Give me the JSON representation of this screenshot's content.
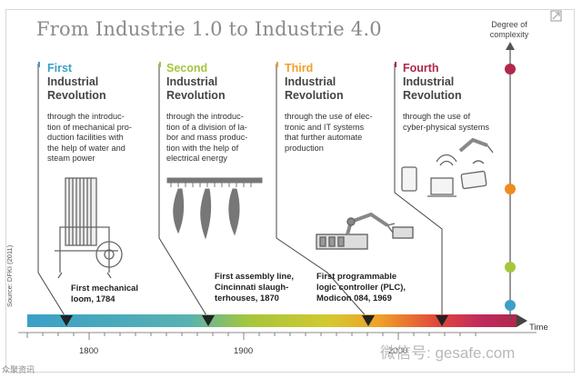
{
  "title": "From Industrie 1.0 to Industrie 4.0",
  "degree_label": "Degree of\ncomplexity",
  "time_label": "Time",
  "source_label": "Source: DFKI (2011)",
  "revolutions": [
    {
      "ordinal": "First",
      "name_line1": "Industrial",
      "name_line2": "Revolution",
      "color": "#3aa0c8",
      "description": "through the introduc-\ntion of mechanical pro-\nduction facilities with\nthe help of water and\nsteam power"
    },
    {
      "ordinal": "Second",
      "name_line1": "Industrial",
      "name_line2": "Revolution",
      "color": "#a4c63c",
      "description": "through the introduc-\ntion of a division of la-\nbor and mass produc-\ntion with the help of\nelectrical energy"
    },
    {
      "ordinal": "Third",
      "name_line1": "Industrial",
      "name_line2": "Revolution",
      "color": "#f0a028",
      "description": "through the use of elec-\ntronic and IT systems\nthat further automate\nproduction"
    },
    {
      "ordinal": "Fourth",
      "name_line1": "Industrial",
      "name_line2": "Revolution",
      "color": "#b0284a",
      "description": "through the use of\ncyber-physical systems"
    }
  ],
  "milestones": [
    {
      "text": "First mechanical\nloom, 1784"
    },
    {
      "text": "First assembly line,\nCincinnati slaugh-\nterhouses, 1870"
    },
    {
      "text": "First programmable\nlogic controller (PLC),\nModicon 084, 1969"
    }
  ],
  "years": [
    "1800",
    "1900",
    "2000"
  ],
  "complexity_dots": [
    "#b0284a",
    "#f08c1e",
    "#a4c63c",
    "#3aa0c8"
  ],
  "watermark_bottom": "众聚资讯",
  "watermark_site": "微信号: gesafe.com"
}
